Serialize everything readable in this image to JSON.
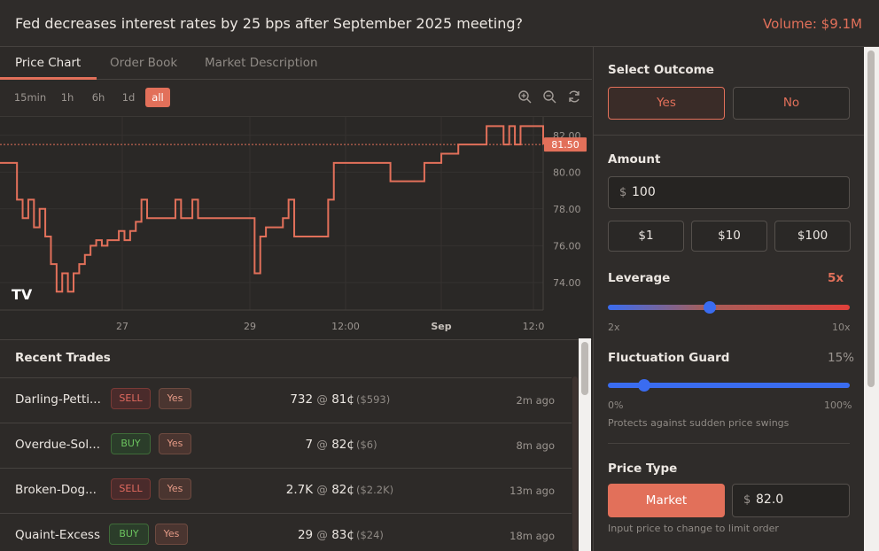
{
  "header": {
    "title": "Fed decreases interest rates by 25 bps after September 2025 meeting?",
    "volume": "Volume: $9.1M"
  },
  "tabs": [
    {
      "label": "Price Chart"
    },
    {
      "label": "Order Book"
    },
    {
      "label": "Market Description"
    }
  ],
  "ranges": [
    {
      "label": "15min"
    },
    {
      "label": "1h"
    },
    {
      "label": "6h"
    },
    {
      "label": "1d"
    },
    {
      "label": "all"
    }
  ],
  "tools": [
    "zoom-in-icon",
    "zoom-out-icon",
    "refresh-icon"
  ],
  "chart": {
    "current_price": "81.50",
    "logo": "TV",
    "y_ticks": [
      "82.00",
      "80.00",
      "78.00",
      "76.00",
      "74.00"
    ],
    "x_ticks": [
      {
        "label": "27"
      },
      {
        "label": "29"
      },
      {
        "label": "12:00"
      },
      {
        "label": "Sep",
        "bold": true
      },
      {
        "label": "12:0"
      }
    ],
    "line_color": "#e2705a"
  },
  "chart_data": {
    "type": "line",
    "ylim": [
      72.5,
      83.0
    ],
    "current": 81.5,
    "series": [
      {
        "values": [
          80.5,
          80.5,
          80.5,
          78.5,
          77.5,
          78.5,
          77.0,
          78.0,
          76.5,
          75.0,
          73.5,
          74.5,
          73.5,
          74.5,
          75.0,
          75.5,
          76.0,
          76.3,
          76.0,
          76.3,
          76.3,
          76.8,
          76.3,
          76.8,
          77.3,
          78.5,
          77.5,
          77.5,
          77.5,
          77.5,
          77.5,
          78.5,
          77.5,
          77.5,
          78.5,
          77.5,
          77.5,
          77.5,
          77.5,
          77.5,
          77.5,
          77.5,
          77.5,
          77.5,
          77.5,
          74.5,
          76.5,
          77.0,
          77.0,
          77.0,
          77.5,
          78.5,
          76.5,
          76.5,
          76.5,
          76.5,
          76.5,
          76.5,
          78.5,
          80.5,
          80.5,
          80.5,
          80.5,
          80.5,
          80.5,
          80.5,
          80.5,
          80.5,
          80.5,
          79.5,
          79.5,
          79.5,
          79.5,
          79.5,
          79.5,
          80.5,
          80.5,
          80.5,
          81.0,
          81.0,
          81.0,
          81.5,
          81.5,
          81.5,
          81.5,
          81.5,
          82.5,
          82.5,
          82.5,
          81.5,
          82.5,
          81.5,
          82.5,
          82.5,
          82.5,
          82.5,
          81.5
        ]
      }
    ]
  },
  "recent_trades": {
    "heading": "Recent Trades",
    "rows": [
      {
        "name": "Darling-Petti...",
        "side": "SELL",
        "outcome": "Yes",
        "qty": "732",
        "at": "@",
        "price": "81¢",
        "usd": "($593)",
        "ago": "2m ago"
      },
      {
        "name": "Overdue-Sol...",
        "side": "BUY",
        "outcome": "Yes",
        "qty": "7",
        "at": "@",
        "price": "82¢",
        "usd": "($6)",
        "ago": "8m ago"
      },
      {
        "name": "Broken-Dog...",
        "side": "SELL",
        "outcome": "Yes",
        "qty": "2.7K",
        "at": "@",
        "price": "82¢",
        "usd": "($2.2K)",
        "ago": "13m ago"
      },
      {
        "name": "Quaint-Excess",
        "side": "BUY",
        "outcome": "Yes",
        "qty": "29",
        "at": "@",
        "price": "83¢",
        "usd": "($24)",
        "ago": "18m ago"
      }
    ]
  },
  "panel": {
    "select_outcome": "Select Outcome",
    "yes": "Yes",
    "no": "No",
    "amount_label": "Amount",
    "currency": "$",
    "amount_value": "100",
    "quick_amounts": [
      "$1",
      "$10",
      "$100"
    ],
    "leverage_label": "Leverage",
    "leverage_value": "5x",
    "leverage_level": 0.42,
    "leverage_min": "2x",
    "leverage_max": "10x",
    "guard_label": "Fluctuation Guard",
    "guard_value": "15%",
    "guard_level": 0.15,
    "guard_min": "0%",
    "guard_max": "100%",
    "guard_note": "Protects against sudden price swings",
    "price_type_label": "Price Type",
    "market_label": "Market",
    "price_value": "82.0",
    "price_note": "Input price to change to limit order"
  }
}
